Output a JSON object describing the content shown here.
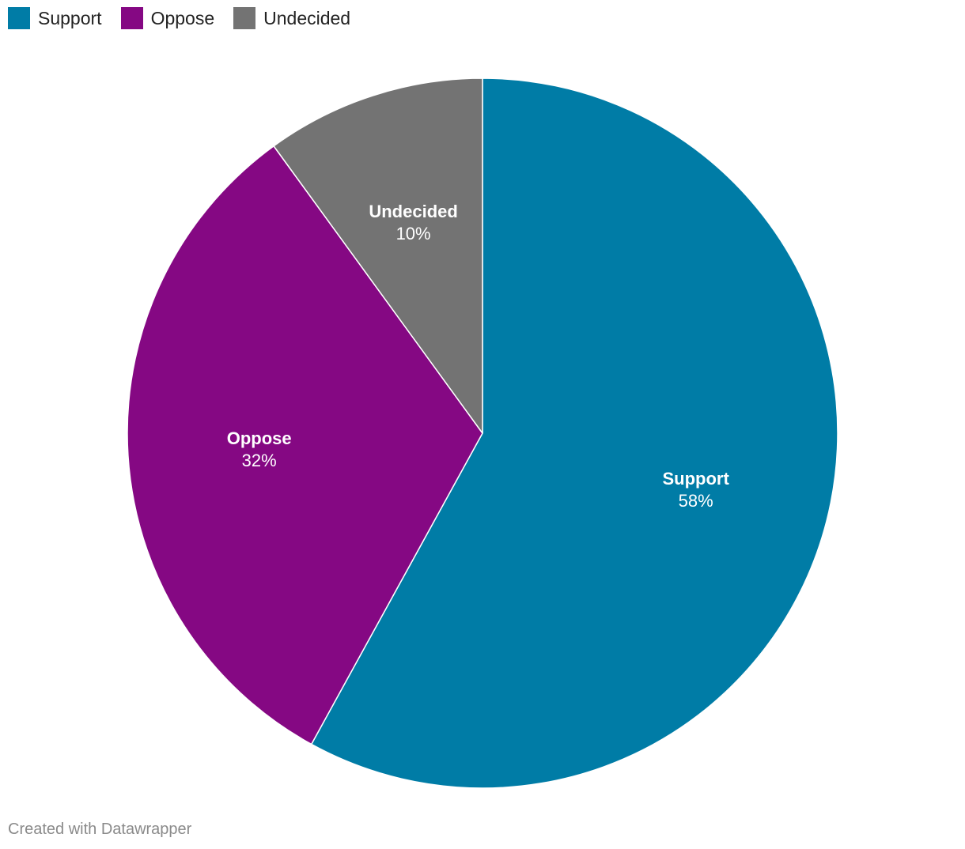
{
  "chart_data": {
    "type": "pie",
    "categories": [
      "Support",
      "Oppose",
      "Undecided"
    ],
    "values": [
      58,
      32,
      10
    ],
    "value_suffix": "%",
    "colors": [
      "#007ca6",
      "#850883",
      "#737373"
    ],
    "legend_position": "top-left",
    "start_angle_deg": 0,
    "direction": "clockwise"
  },
  "legend": {
    "items": [
      {
        "label": "Support",
        "color": "#007ca6"
      },
      {
        "label": "Oppose",
        "color": "#850883"
      },
      {
        "label": "Undecided",
        "color": "#737373"
      }
    ]
  },
  "footer": {
    "credit": "Created with Datawrapper"
  }
}
